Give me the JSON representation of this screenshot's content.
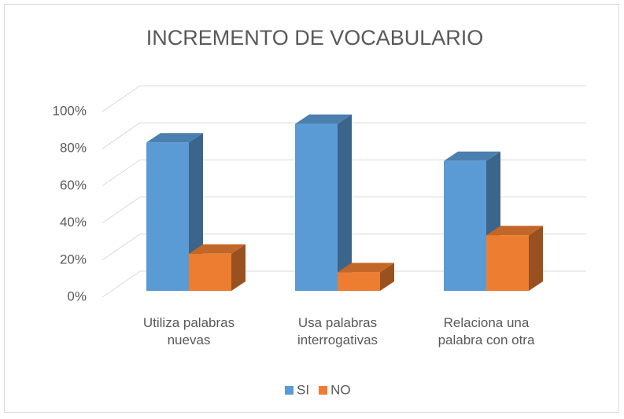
{
  "chart_data": {
    "type": "bar3d",
    "title": "INCREMENTO DE VOCABULARIO",
    "categories": [
      "Utiliza palabras nuevas",
      "Usa palabras interrogativas",
      "Relaciona una palabra con otra"
    ],
    "series": [
      {
        "name": "SI",
        "color": "#5b9bd5",
        "values": [
          80,
          90,
          70
        ]
      },
      {
        "name": "NO",
        "color": "#ed7d31",
        "values": [
          20,
          10,
          30
        ]
      }
    ],
    "ylim": [
      0,
      100
    ],
    "yticks": [
      {
        "value": 0,
        "label": "0%"
      },
      {
        "value": 20,
        "label": "20%"
      },
      {
        "value": 40,
        "label": "40%"
      },
      {
        "value": 60,
        "label": "60%"
      },
      {
        "value": 80,
        "label": "80%"
      },
      {
        "value": 100,
        "label": "100%"
      }
    ],
    "grid": true,
    "legend": "bottom"
  }
}
